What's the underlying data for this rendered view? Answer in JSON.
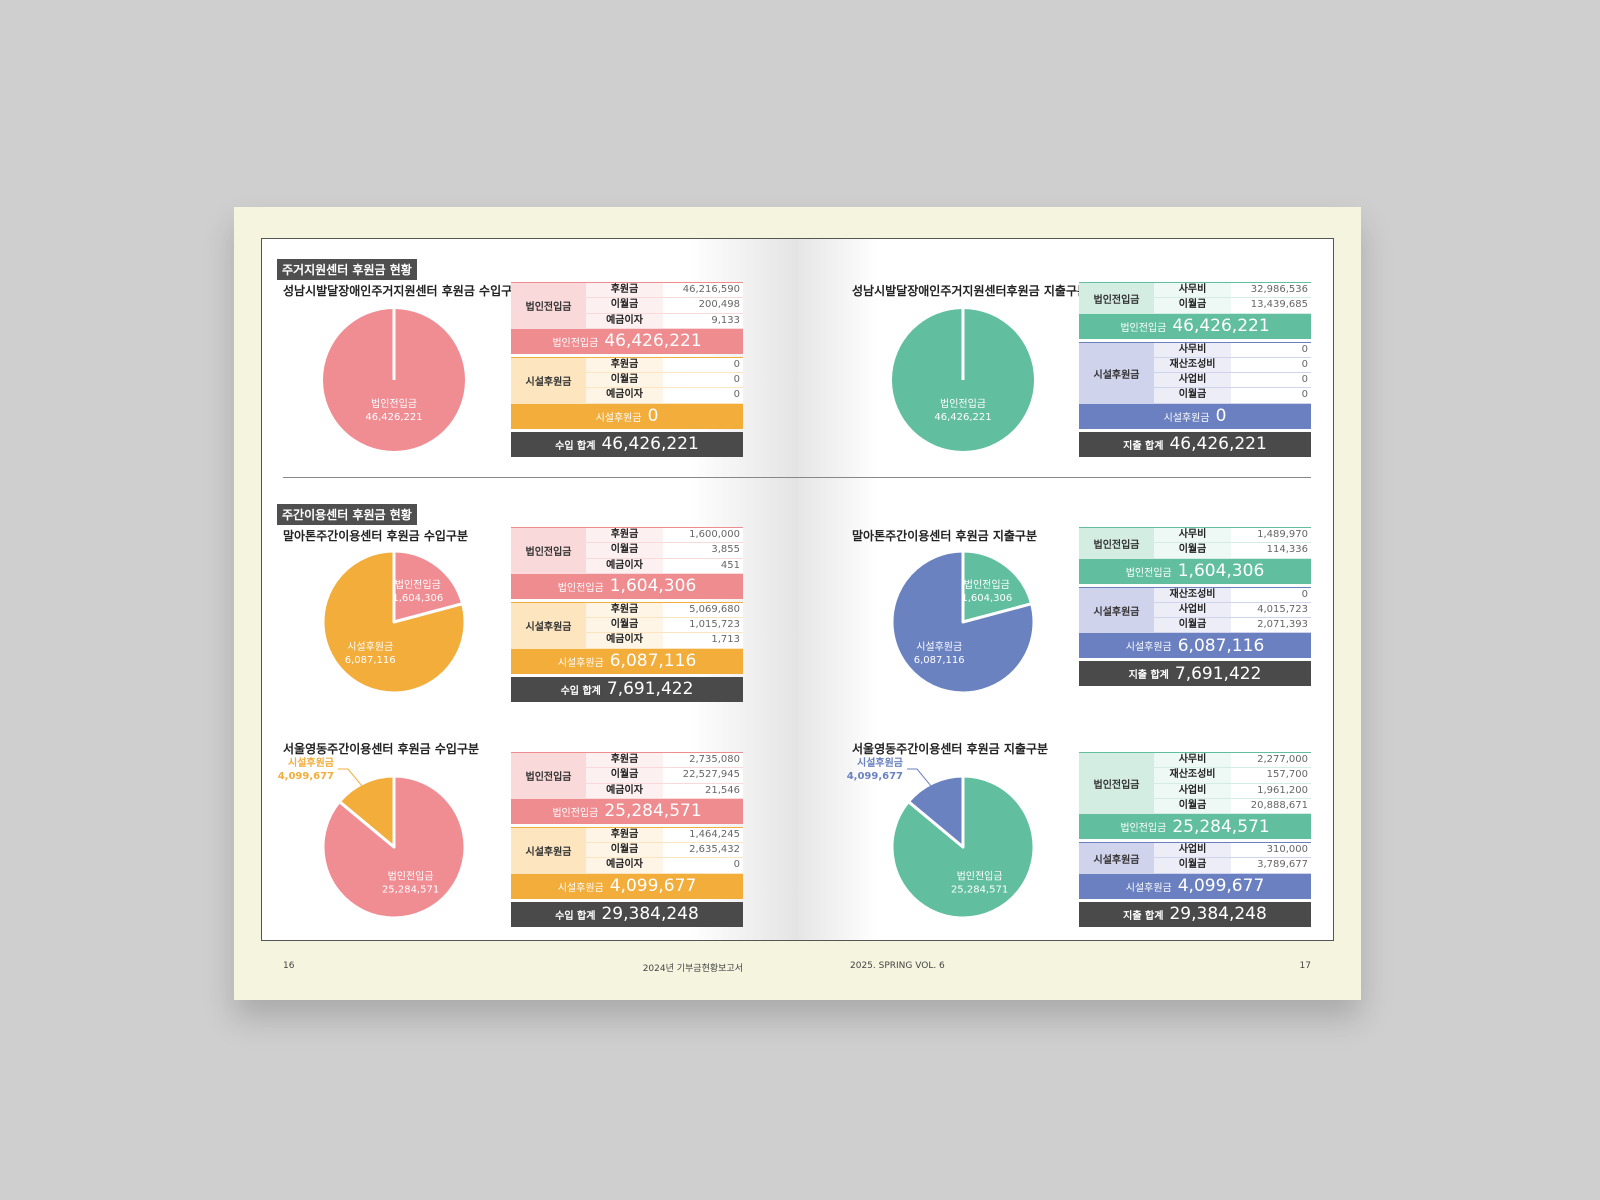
{
  "headers": [
    "주거지원센터 후원금 현황",
    "주간이용센터 후원금 현황"
  ],
  "blocks": [
    {
      "title": "성남시발달장애인주거지원센터 후원금 수입구분",
      "pie": {
        "slices": [
          {
            "name": "법인전입금",
            "value": 46426221,
            "label": "46,426,221",
            "color": "#ef8d93"
          }
        ]
      },
      "groups": [
        {
          "name": "법인전입금",
          "color": "#ee8c90",
          "tint": "#f9d9d9",
          "rows": [
            {
              "label": "후원금",
              "value": "46,216,590"
            },
            {
              "label": "이월금",
              "value": "200,498"
            },
            {
              "label": "예금이자",
              "value": "9,133"
            }
          ],
          "subtotal": {
            "label": "법인전입금",
            "value": "46,426,221"
          }
        },
        {
          "name": "시설후원금",
          "color": "#f2ad3b",
          "tint": "#fde5c0",
          "rows": [
            {
              "label": "후원금",
              "value": "0"
            },
            {
              "label": "이월금",
              "value": "0"
            },
            {
              "label": "예금이자",
              "value": "0"
            }
          ],
          "subtotal": {
            "label": "시설후원금",
            "value": "0"
          }
        }
      ],
      "total": {
        "label": "수입 합계",
        "value": "46,426,221"
      }
    },
    {
      "title": "말아톤주간이용센터 후원금 수입구분",
      "pie": {
        "slices": [
          {
            "name": "법인전입금",
            "value": 1604306,
            "label": "1,604,306",
            "color": "#ef8d93"
          },
          {
            "name": "시설후원금",
            "value": 6087116,
            "label": "6,087,116",
            "color": "#f2ad3b"
          }
        ]
      },
      "groups": [
        {
          "name": "법인전입금",
          "color": "#ee8c90",
          "tint": "#f9d9d9",
          "rows": [
            {
              "label": "후원금",
              "value": "1,600,000"
            },
            {
              "label": "이월금",
              "value": "3,855"
            },
            {
              "label": "예금이자",
              "value": "451"
            }
          ],
          "subtotal": {
            "label": "법인전입금",
            "value": "1,604,306"
          }
        },
        {
          "name": "시설후원금",
          "color": "#f2ad3b",
          "tint": "#fde5c0",
          "rows": [
            {
              "label": "후원금",
              "value": "5,069,680"
            },
            {
              "label": "이월금",
              "value": "1,015,723"
            },
            {
              "label": "예금이자",
              "value": "1,713"
            }
          ],
          "subtotal": {
            "label": "시설후원금",
            "value": "6,087,116"
          }
        }
      ],
      "total": {
        "label": "수입 합계",
        "value": "7,691,422"
      }
    },
    {
      "title": "서울영동주간이용센터 후원금 수입구분",
      "pie": {
        "slices": [
          {
            "name": "법인전입금",
            "value": 25284571,
            "label": "25,284,571",
            "color": "#ef8d93"
          },
          {
            "name": "시설후원금",
            "value": 4099677,
            "label": "4,099,677",
            "color": "#f2ad3b"
          }
        ]
      },
      "groups": [
        {
          "name": "법인전입금",
          "color": "#ee8c90",
          "tint": "#f9d9d9",
          "rows": [
            {
              "label": "후원금",
              "value": "2,735,080"
            },
            {
              "label": "이월금",
              "value": "22,527,945"
            },
            {
              "label": "예금이자",
              "value": "21,546"
            }
          ],
          "subtotal": {
            "label": "법인전입금",
            "value": "25,284,571"
          }
        },
        {
          "name": "시설후원금",
          "color": "#f2ad3b",
          "tint": "#fde5c0",
          "rows": [
            {
              "label": "후원금",
              "value": "1,464,245"
            },
            {
              "label": "이월금",
              "value": "2,635,432"
            },
            {
              "label": "예금이자",
              "value": "0"
            }
          ],
          "subtotal": {
            "label": "시설후원금",
            "value": "4,099,677"
          }
        }
      ],
      "total": {
        "label": "수입 합계",
        "value": "29,384,248"
      }
    },
    {
      "title": "성남시발달장애인주거지원센터후원금 지출구분",
      "pie": {
        "slices": [
          {
            "name": "법인전입금",
            "value": 46426221,
            "label": "46,426,221",
            "color": "#61be9f"
          }
        ]
      },
      "groups": [
        {
          "name": "법인전입금",
          "color": "#61be9f",
          "tint": "#d4ede3",
          "rows": [
            {
              "label": "사무비",
              "value": "32,986,536"
            },
            {
              "label": "이월금",
              "value": "13,439,685"
            }
          ],
          "subtotal": {
            "label": "법인전입금",
            "value": "46,426,221"
          }
        },
        {
          "name": "시설후원금",
          "color": "#6b80c0",
          "tint": "#d0d3ec",
          "rows": [
            {
              "label": "사무비",
              "value": "0"
            },
            {
              "label": "재산조성비",
              "value": "0"
            },
            {
              "label": "사업비",
              "value": "0"
            },
            {
              "label": "이월금",
              "value": "0"
            }
          ],
          "subtotal": {
            "label": "시설후원금",
            "value": "0"
          }
        }
      ],
      "total": {
        "label": "지출 합계",
        "value": "46,426,221"
      }
    },
    {
      "title": "말아톤주간이용센터 후원금 지출구분",
      "pie": {
        "slices": [
          {
            "name": "법인전입금",
            "value": 1604306,
            "label": "1,604,306",
            "color": "#61be9f"
          },
          {
            "name": "시설후원금",
            "value": 6087116,
            "label": "6,087,116",
            "color": "#6b82c1"
          }
        ]
      },
      "groups": [
        {
          "name": "법인전입금",
          "color": "#61be9f",
          "tint": "#d4ede3",
          "rows": [
            {
              "label": "사무비",
              "value": "1,489,970"
            },
            {
              "label": "이월금",
              "value": "114,336"
            }
          ],
          "subtotal": {
            "label": "법인전입금",
            "value": "1,604,306"
          }
        },
        {
          "name": "시설후원금",
          "color": "#6b80c0",
          "tint": "#d0d3ec",
          "rows": [
            {
              "label": "재산조성비",
              "value": "0"
            },
            {
              "label": "사업비",
              "value": "4,015,723"
            },
            {
              "label": "이월금",
              "value": "2,071,393"
            }
          ],
          "subtotal": {
            "label": "시설후원금",
            "value": "6,087,116"
          }
        }
      ],
      "total": {
        "label": "지출 합계",
        "value": "7,691,422"
      }
    },
    {
      "title": "서울영동주간이용센터 후원금 지출구분",
      "pie": {
        "slices": [
          {
            "name": "법인전입금",
            "value": 25284571,
            "label": "25,284,571",
            "color": "#61be9f"
          },
          {
            "name": "시설후원금",
            "value": 4099677,
            "label": "4,099,677",
            "color": "#6b82c1"
          }
        ]
      },
      "groups": [
        {
          "name": "법인전입금",
          "color": "#61be9f",
          "tint": "#d4ede3",
          "rows": [
            {
              "label": "사무비",
              "value": "2,277,000"
            },
            {
              "label": "재산조성비",
              "value": "157,700"
            },
            {
              "label": "사업비",
              "value": "1,961,200"
            },
            {
              "label": "이월금",
              "value": "20,888,671"
            }
          ],
          "subtotal": {
            "label": "법인전입금",
            "value": "25,284,571"
          }
        },
        {
          "name": "시설후원금",
          "color": "#6b80c0",
          "tint": "#d0d3ec",
          "rows": [
            {
              "label": "사업비",
              "value": "310,000"
            },
            {
              "label": "이월금",
              "value": "3,789,677"
            }
          ],
          "subtotal": {
            "label": "시설후원금",
            "value": "4,099,677"
          }
        }
      ],
      "total": {
        "label": "지출 합계",
        "value": "29,384,248"
      }
    }
  ],
  "footer": {
    "left_page": "16",
    "left_title": "2024년 기부금현황보고서",
    "right_title": "2025. SPRING VOL. 6",
    "right_page": "17"
  }
}
